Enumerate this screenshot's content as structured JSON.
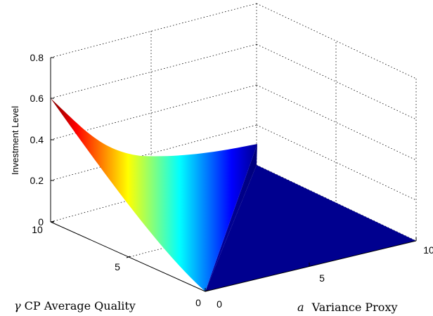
{
  "chart_data": {
    "type": "surface",
    "zlabel": "Investment Level",
    "xlabel_symbol": "a",
    "xlabel_text": "Variance Proxy",
    "ylabel_symbol": "γ",
    "ylabel_text": "CP Average Quality",
    "x_ticks": [
      "0",
      "5",
      "10"
    ],
    "y_ticks": [
      "0",
      "5",
      "10"
    ],
    "z_ticks": [
      "0",
      "0.2",
      "0.4",
      "0.6",
      "0.8"
    ],
    "xlim": [
      0,
      10
    ],
    "ylim": [
      0,
      10
    ],
    "zlim": [
      0,
      0.8
    ],
    "grid": true,
    "colormap": [
      "#00008f",
      "#0000ff",
      "#0080ff",
      "#00ffff",
      "#80ff80",
      "#ffff00",
      "#ff8000",
      "#ff0000",
      "#800000"
    ],
    "surface_points": [
      {
        "a": 0,
        "gamma": 10,
        "investment": 0.6
      },
      {
        "a": 0,
        "gamma": 7.5,
        "investment": 0.36
      },
      {
        "a": 0,
        "gamma": 5,
        "investment": 0.24
      },
      {
        "a": 0,
        "gamma": 2.5,
        "investment": 0.1
      },
      {
        "a": 0,
        "gamma": 0,
        "investment": 0
      },
      {
        "a": 5,
        "gamma": 10,
        "investment": 0.35
      },
      {
        "a": 5,
        "gamma": 5,
        "investment": 0.23
      },
      {
        "a": 5,
        "gamma": 2.5,
        "investment": 0.12
      },
      {
        "a": 5,
        "gamma": 0,
        "investment": 0
      },
      {
        "a": 10,
        "gamma": 10,
        "investment": 0
      },
      {
        "a": 10,
        "gamma": 0,
        "investment": 0
      }
    ]
  }
}
